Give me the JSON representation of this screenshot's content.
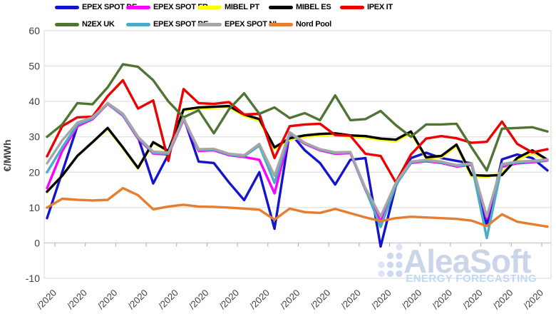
{
  "chart_data": {
    "type": "line",
    "ylabel": "€/MWh",
    "ylim": [
      -10,
      60
    ],
    "y_ticks": [
      60,
      50,
      40,
      30,
      20,
      10,
      0,
      -10
    ],
    "x_tick_labels": [
      "/2020",
      "/2020",
      "/2020",
      "/2020",
      "/2020",
      "/2020",
      "/2020",
      "/2020",
      "/2020",
      "/2020",
      "/2020",
      "/2020",
      "/2020",
      "/2020",
      "/2020",
      "/2020",
      "/2020"
    ],
    "grid": true,
    "legend_position": "top-left",
    "series": [
      {
        "name": "EPEX SPOT DE",
        "color": "#1414CC",
        "values": [
          7,
          20,
          33,
          35,
          39.5,
          36.5,
          30,
          16.8,
          25,
          35.5,
          23,
          22.6,
          17.1,
          12.1,
          20,
          4,
          31.3,
          26.2,
          22.6,
          16.5,
          23.5,
          24,
          -1,
          16.1,
          24,
          25.5,
          24,
          23.2,
          22.5,
          5,
          23.6,
          25,
          24,
          20.5
        ]
      },
      {
        "name": "EPEX SPOT FR",
        "color": "#FF00FF",
        "values": [
          15.5,
          26,
          33,
          35,
          39.3,
          36,
          29.5,
          25.3,
          25,
          34.8,
          26,
          26.2,
          24.8,
          24.3,
          23.5,
          14,
          30.8,
          28,
          26.2,
          25.2,
          25.4,
          15,
          6,
          16.5,
          22.6,
          23.1,
          22.6,
          21.6,
          22.1,
          6.9,
          21.5,
          22.5,
          22.8,
          23.3
        ]
      },
      {
        "name": "MIBEL PT",
        "color": "#FFFF00",
        "values": [
          14.5,
          19,
          24.6,
          28.5,
          32.3,
          26.8,
          21,
          28.3,
          25.8,
          37.4,
          38,
          38.2,
          38.4,
          35.9,
          34.6,
          26.6,
          29.2,
          30,
          30.4,
          30.6,
          30,
          29.8,
          29.1,
          28.8,
          31,
          24,
          24.2,
          27.4,
          18.8,
          18.6,
          20,
          23.5,
          25.4,
          23.6
        ]
      },
      {
        "name": "MIBEL ES",
        "color": "#000000",
        "values": [
          14.5,
          19,
          24.6,
          28.5,
          32.5,
          27,
          21.2,
          28.5,
          26,
          37.7,
          38.3,
          38.5,
          38.7,
          36.3,
          35,
          27,
          29.6,
          30.4,
          30.8,
          31,
          30.4,
          30.2,
          29.5,
          29.2,
          31.5,
          24.2,
          24.6,
          27.8,
          19.2,
          19,
          19.2,
          24,
          26.2,
          23.5
        ]
      },
      {
        "name": "IPEX IT",
        "color": "#EC0000",
        "values": [
          24.5,
          33,
          35.5,
          35.7,
          41.5,
          46,
          38,
          40.3,
          23.2,
          43.5,
          39.5,
          39.3,
          39.8,
          36.3,
          36.5,
          24,
          33,
          33.5,
          33.7,
          30.5,
          30.3,
          25.2,
          24.6,
          17.1,
          25,
          29.5,
          30.2,
          29.6,
          28.3,
          28.6,
          34.3,
          28,
          25.6,
          26.5
        ]
      },
      {
        "name": "N2EX UK",
        "color": "#4F7433",
        "values": [
          30,
          33.5,
          39.5,
          39.2,
          44,
          50.5,
          49.8,
          46,
          40,
          35.5,
          37.5,
          31,
          37.8,
          42.3,
          36.5,
          38.3,
          35.3,
          36.7,
          34.7,
          41.7,
          34.7,
          35,
          37.3,
          33.3,
          30,
          33.5,
          33.5,
          33.7,
          27,
          20.5,
          32.3,
          32.5,
          32.7,
          31.5
        ]
      },
      {
        "name": "EPEX SPOT BE",
        "color": "#4BACC6",
        "values": [
          20,
          27,
          33.5,
          35.2,
          39.4,
          36.2,
          29.8,
          25.5,
          25.2,
          35,
          26.3,
          26.4,
          25,
          24.5,
          27.5,
          17,
          31,
          28.2,
          26.4,
          25.4,
          25.6,
          15.2,
          4.5,
          16.3,
          22.8,
          23.3,
          22.8,
          21.8,
          22.3,
          1.4,
          22,
          22.8,
          23,
          23.4
        ]
      },
      {
        "name": "EPEX SPOT NL",
        "color": "#A6A6A6",
        "values": [
          22.5,
          29,
          34,
          35.5,
          39.5,
          36.5,
          30,
          25.8,
          25.5,
          35.2,
          26.5,
          26.6,
          25.2,
          24.8,
          28,
          19,
          31.3,
          28.3,
          26.5,
          25.6,
          25.7,
          15.5,
          7.5,
          17,
          23,
          23.5,
          23,
          22,
          22.5,
          7.5,
          22.3,
          23,
          23.2,
          23.6
        ]
      },
      {
        "name": "Nord Pool",
        "color": "#E57E31",
        "values": [
          10,
          12.5,
          12.2,
          12,
          12.2,
          15.5,
          13.5,
          9.5,
          10.3,
          10.8,
          10.3,
          10.2,
          10,
          9.7,
          9.4,
          6.6,
          9.7,
          8.7,
          8.5,
          9.6,
          8.4,
          7.2,
          6.2,
          7,
          7.4,
          7.2,
          7,
          6.8,
          6.3,
          4.8,
          8.1,
          6,
          5.3,
          4.6
        ]
      }
    ]
  },
  "watermark": {
    "title": "AleaSoft",
    "subtitle": "ENERGY FORECASTING",
    "title_color": "#CBD5E9",
    "subtitle_color": "#C1D7F2",
    "dot_color": "#CCD9F0"
  },
  "style": {
    "grid_color": "#D9D9D9",
    "axis_color": "#C2C2C2",
    "tick_color": "#A8A8A8",
    "label_color": "#3F3F3F"
  }
}
